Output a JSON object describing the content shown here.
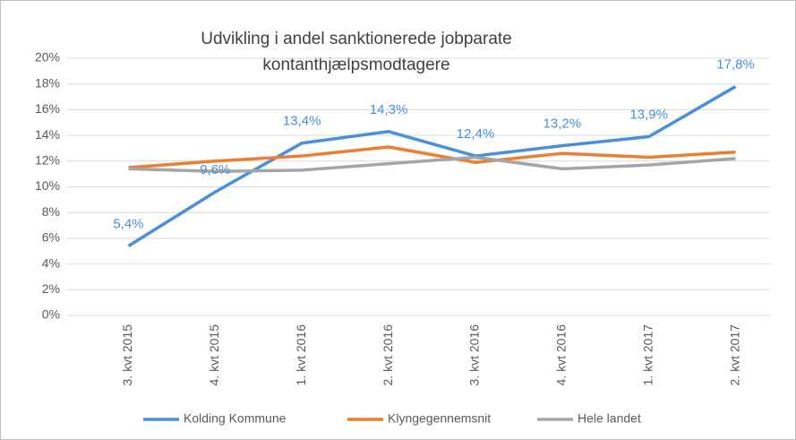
{
  "chart_data": {
    "type": "line",
    "title": [
      "Udvikling i andel sanktionerede jobparate",
      "kontanthjælpsmodtagere"
    ],
    "categories": [
      "3. kvt 2015",
      "4. kvt 2015",
      "1. kvt 2016",
      "2. kvt 2016",
      "3. kvt 2016",
      "4. kvt 2016",
      "1. kvt 2017",
      "2. kvt 2017"
    ],
    "series": [
      {
        "name": "Kolding Kommune",
        "color": "#4a8fdc",
        "values": [
          5.4,
          9.6,
          13.4,
          14.3,
          12.4,
          13.2,
          13.9,
          17.8
        ],
        "value_labels": [
          "5,4%",
          "9,6%",
          "13,4%",
          "14,3%",
          "12,4%",
          "13,2%",
          "13,9%",
          "17,8%"
        ]
      },
      {
        "name": "Klyngegennemsnit",
        "color": "#ed7d31",
        "values": [
          11.5,
          12.0,
          12.4,
          13.1,
          11.9,
          12.6,
          12.3,
          12.7
        ]
      },
      {
        "name": "Hele landet",
        "color": "#a5a5a5",
        "values": [
          11.4,
          11.2,
          11.3,
          11.8,
          12.3,
          11.4,
          11.7,
          12.2
        ]
      }
    ],
    "ylim": [
      0,
      20
    ],
    "yticks": [
      {
        "value": 0,
        "label": "0%"
      },
      {
        "value": 2,
        "label": "2%"
      },
      {
        "value": 4,
        "label": "4%"
      },
      {
        "value": 6,
        "label": "6%"
      },
      {
        "value": 8,
        "label": "8%"
      },
      {
        "value": 10,
        "label": "10%"
      },
      {
        "value": 12,
        "label": "12%"
      },
      {
        "value": 14,
        "label": "14%"
      },
      {
        "value": 16,
        "label": "16%"
      },
      {
        "value": 18,
        "label": "18%"
      },
      {
        "value": 20,
        "label": "20%"
      }
    ],
    "grid": true,
    "legend": "bottom"
  }
}
